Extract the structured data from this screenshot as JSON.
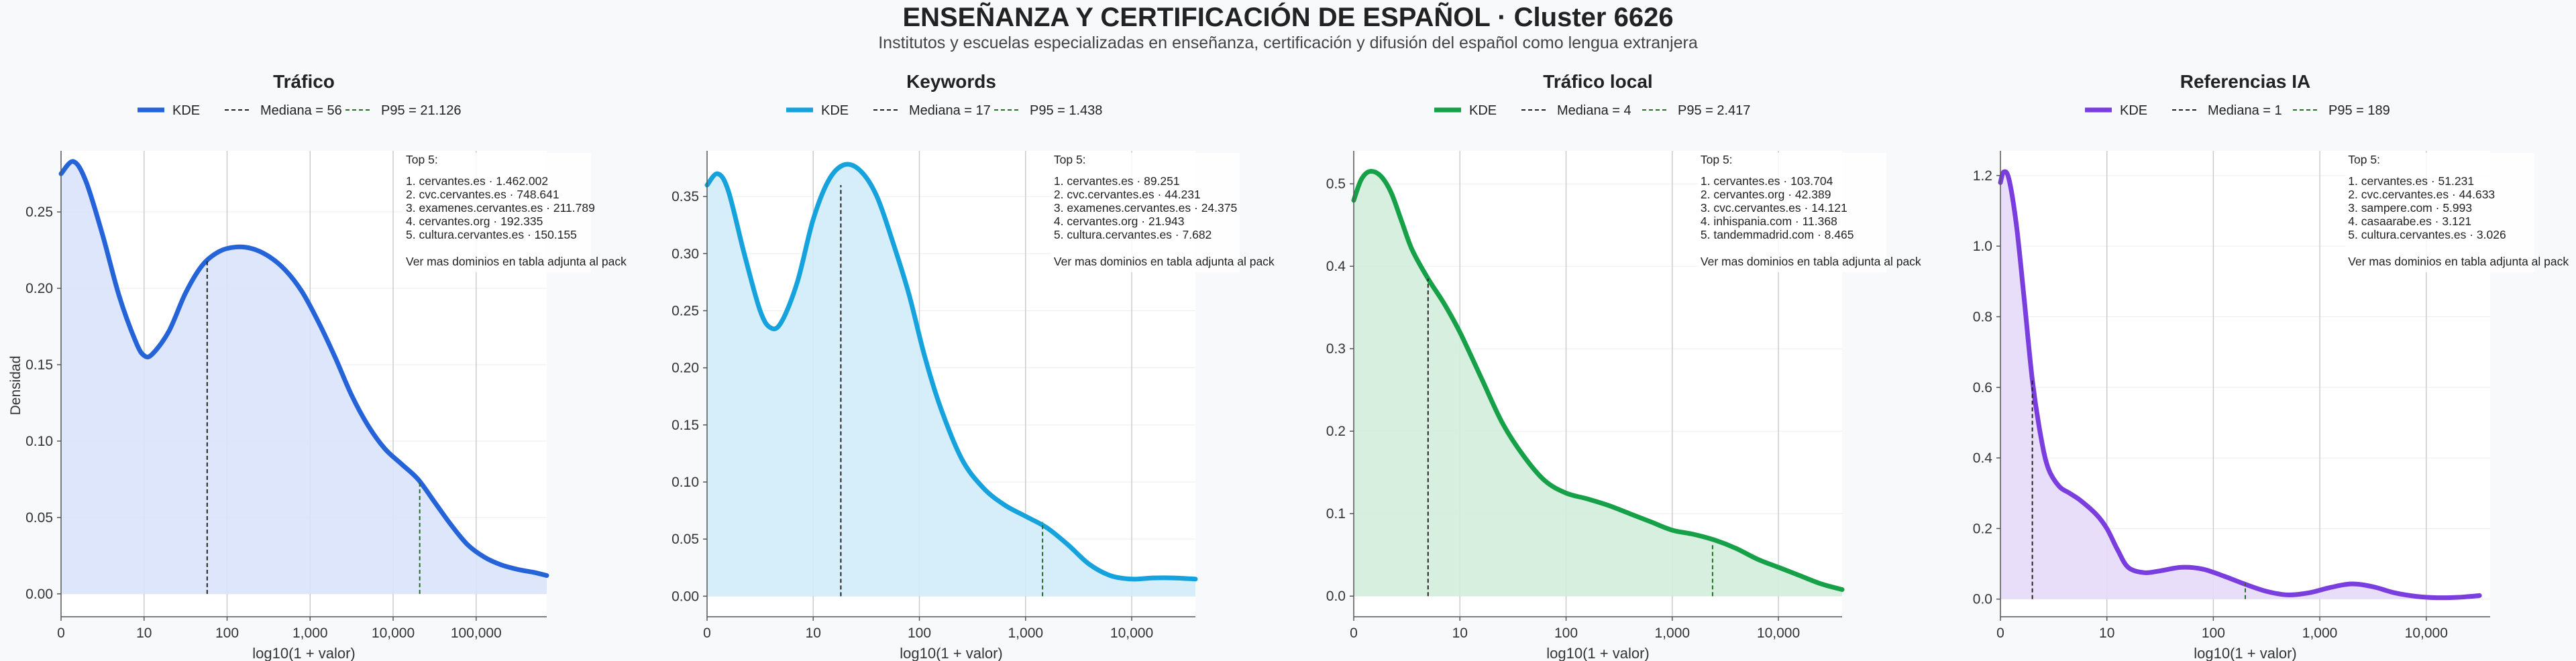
{
  "title": "ENSEÑANZA Y CERTIFICACIÓN DE ESPAÑOL · Cluster 6626",
  "subtitle": "Institutos y escuelas especializadas en enseñanza, certificación y difusión del español como lengua extranjera",
  "ylabel": "Densidad",
  "chart_data": [
    {
      "type": "area",
      "title": "Tráfico",
      "xlabel": "log10(1 + valor)",
      "color": "#2563d9",
      "fill": "#d9e3fa",
      "x_ticks": [
        0,
        1,
        2,
        3,
        4,
        5
      ],
      "x_tick_labels": [
        "0",
        "10",
        "100",
        "1,000",
        "10,000",
        "100,000"
      ],
      "xlim": [
        0,
        5.85
      ],
      "y_ticks": [
        0,
        0.05,
        0.1,
        0.15,
        0.2,
        0.25
      ],
      "y_tick_labels": [
        "0.00",
        "0.05",
        "0.10",
        "0.15",
        "0.20",
        "0.25"
      ],
      "ylim": [
        -0.015,
        0.29
      ],
      "median": 1.76,
      "median_y": 0.218,
      "p95": 4.32,
      "p95_y": 0.075,
      "legend": {
        "kde": "KDE",
        "median": "Mediana = 56",
        "p95": "P95 = 21.126"
      },
      "top5": [
        "Top 5:",
        "1. cervantes.es · 1.462.002",
        "2. cvc.cervantes.es · 748.641",
        "3. examenes.cervantes.es · 211.789",
        "4. cervantes.org · 192.335",
        "5. cultura.cervantes.es · 150.155",
        "Ver mas dominios en tabla adjunta al pack"
      ],
      "x": [
        0,
        0.15,
        0.3,
        0.5,
        0.7,
        0.9,
        1.0,
        1.1,
        1.3,
        1.5,
        1.7,
        1.9,
        2.1,
        2.3,
        2.5,
        2.7,
        2.9,
        3.1,
        3.3,
        3.5,
        3.7,
        3.9,
        4.1,
        4.3,
        4.5,
        4.7,
        4.9,
        5.1,
        5.3,
        5.5,
        5.7,
        5.85
      ],
      "y": [
        0.275,
        0.283,
        0.27,
        0.235,
        0.195,
        0.165,
        0.156,
        0.157,
        0.172,
        0.197,
        0.215,
        0.224,
        0.227,
        0.226,
        0.221,
        0.212,
        0.198,
        0.178,
        0.155,
        0.13,
        0.11,
        0.095,
        0.085,
        0.075,
        0.06,
        0.045,
        0.032,
        0.024,
        0.019,
        0.016,
        0.014,
        0.012
      ]
    },
    {
      "type": "area",
      "title": "Keywords",
      "xlabel": "log10(1 + valor)",
      "color": "#16a3dd",
      "fill": "#d1ecfa",
      "x_ticks": [
        0,
        1,
        2,
        3,
        4
      ],
      "x_tick_labels": [
        "0",
        "10",
        "100",
        "1,000",
        "10,000"
      ],
      "xlim": [
        0,
        4.6
      ],
      "y_ticks": [
        0,
        0.05,
        0.1,
        0.15,
        0.2,
        0.25,
        0.3,
        0.35
      ],
      "y_tick_labels": [
        "0.00",
        "0.05",
        "0.10",
        "0.15",
        "0.20",
        "0.25",
        "0.30",
        "0.35"
      ],
      "ylim": [
        -0.018,
        0.39
      ],
      "median": 1.26,
      "median_y": 0.36,
      "p95": 3.16,
      "p95_y": 0.065,
      "legend": {
        "kde": "KDE",
        "median": "Mediana = 17",
        "p95": "P95 = 1.438"
      },
      "top5": [
        "Top 5:",
        "1. cervantes.es · 89.251",
        "2. cvc.cervantes.es · 44.231",
        "3. examenes.cervantes.es · 24.375",
        "4. cervantes.org · 21.943",
        "5. cultura.cervantes.es · 7.682",
        "Ver mas dominios en tabla adjunta al pack"
      ],
      "x": [
        0,
        0.1,
        0.2,
        0.35,
        0.5,
        0.6,
        0.7,
        0.85,
        1.0,
        1.15,
        1.3,
        1.45,
        1.6,
        1.75,
        1.9,
        2.05,
        2.2,
        2.4,
        2.6,
        2.8,
        3.0,
        3.2,
        3.4,
        3.6,
        3.8,
        4.0,
        4.2,
        4.4,
        4.6
      ],
      "y": [
        0.36,
        0.37,
        0.355,
        0.3,
        0.25,
        0.235,
        0.24,
        0.275,
        0.33,
        0.365,
        0.378,
        0.372,
        0.35,
        0.31,
        0.265,
        0.21,
        0.165,
        0.12,
        0.095,
        0.08,
        0.07,
        0.06,
        0.045,
        0.028,
        0.018,
        0.015,
        0.016,
        0.016,
        0.015
      ]
    },
    {
      "type": "area",
      "title": "Tráfico local",
      "xlabel": "log10(1 + valor)",
      "color": "#16a048",
      "fill": "#d2eddc",
      "x_ticks": [
        0,
        1,
        2,
        3,
        4
      ],
      "x_tick_labels": [
        "0",
        "10",
        "100",
        "1,000",
        "10,000"
      ],
      "xlim": [
        0,
        4.6
      ],
      "y_ticks": [
        0,
        0.1,
        0.2,
        0.3,
        0.4,
        0.5
      ],
      "y_tick_labels": [
        "0.0",
        "0.1",
        "0.2",
        "0.3",
        "0.4",
        "0.5"
      ],
      "ylim": [
        -0.025,
        0.54
      ],
      "median": 0.7,
      "median_y": 0.385,
      "p95": 3.38,
      "p95_y": 0.065,
      "legend": {
        "kde": "KDE",
        "median": "Mediana = 4",
        "p95": "P95 = 2.417"
      },
      "top5": [
        "Top 5:",
        "1. cervantes.es · 103.704",
        "2. cervantes.org · 42.389",
        "3. cvc.cervantes.es · 14.121",
        "4. inhispania.com · 11.368",
        "5. tandemmadrid.com · 8.465",
        "Ver mas dominios en tabla adjunta al pack"
      ],
      "x": [
        0,
        0.07,
        0.15,
        0.25,
        0.35,
        0.45,
        0.55,
        0.7,
        0.85,
        1.0,
        1.2,
        1.4,
        1.6,
        1.8,
        2.0,
        2.2,
        2.4,
        2.6,
        2.8,
        3.0,
        3.2,
        3.4,
        3.6,
        3.8,
        4.0,
        4.2,
        4.4,
        4.6
      ],
      "y": [
        0.48,
        0.505,
        0.515,
        0.51,
        0.49,
        0.455,
        0.42,
        0.385,
        0.355,
        0.32,
        0.265,
        0.21,
        0.17,
        0.14,
        0.125,
        0.118,
        0.11,
        0.1,
        0.09,
        0.08,
        0.075,
        0.068,
        0.058,
        0.045,
        0.035,
        0.025,
        0.015,
        0.008
      ]
    },
    {
      "type": "area",
      "title": "Referencias IA",
      "xlabel": "log10(1 + valor)",
      "color": "#7a3ede",
      "fill": "#e6dafa",
      "x_ticks": [
        0,
        1,
        2,
        3,
        4
      ],
      "x_tick_labels": [
        "0",
        "10",
        "100",
        "1,000",
        "10,000"
      ],
      "xlim": [
        0,
        4.6
      ],
      "y_ticks": [
        0,
        0.2,
        0.4,
        0.6,
        0.8,
        1.0,
        1.2
      ],
      "y_tick_labels": [
        "0.0",
        "0.2",
        "0.4",
        "0.6",
        "0.8",
        "1.0",
        "1.2"
      ],
      "ylim": [
        -0.05,
        1.27
      ],
      "median": 0.3,
      "median_y": 0.62,
      "p95": 2.3,
      "p95_y": 0.045,
      "legend": {
        "kde": "KDE",
        "median": "Mediana = 1",
        "p95": "P95 = 189"
      },
      "top5": [
        "Top 5:",
        "1. cervantes.es · 51.231",
        "2. cvc.cervantes.es · 44.633",
        "3. sampere.com · 5.993",
        "4. casaarabe.es · 3.121",
        "5. cultura.cervantes.es · 3.026",
        "Ver mas dominios en tabla adjunta al pack"
      ],
      "x": [
        0,
        0.03,
        0.08,
        0.15,
        0.22,
        0.3,
        0.38,
        0.45,
        0.55,
        0.65,
        0.75,
        0.9,
        1.0,
        1.1,
        1.2,
        1.35,
        1.5,
        1.7,
        1.9,
        2.1,
        2.3,
        2.5,
        2.7,
        2.9,
        3.1,
        3.3,
        3.5,
        3.7,
        3.9,
        4.1,
        4.3,
        4.5
      ],
      "y": [
        1.18,
        1.21,
        1.19,
        1.06,
        0.86,
        0.62,
        0.46,
        0.37,
        0.32,
        0.3,
        0.28,
        0.24,
        0.2,
        0.14,
        0.09,
        0.075,
        0.08,
        0.09,
        0.085,
        0.065,
        0.042,
        0.022,
        0.012,
        0.018,
        0.033,
        0.043,
        0.035,
        0.018,
        0.008,
        0.004,
        0.005,
        0.01
      ]
    }
  ]
}
